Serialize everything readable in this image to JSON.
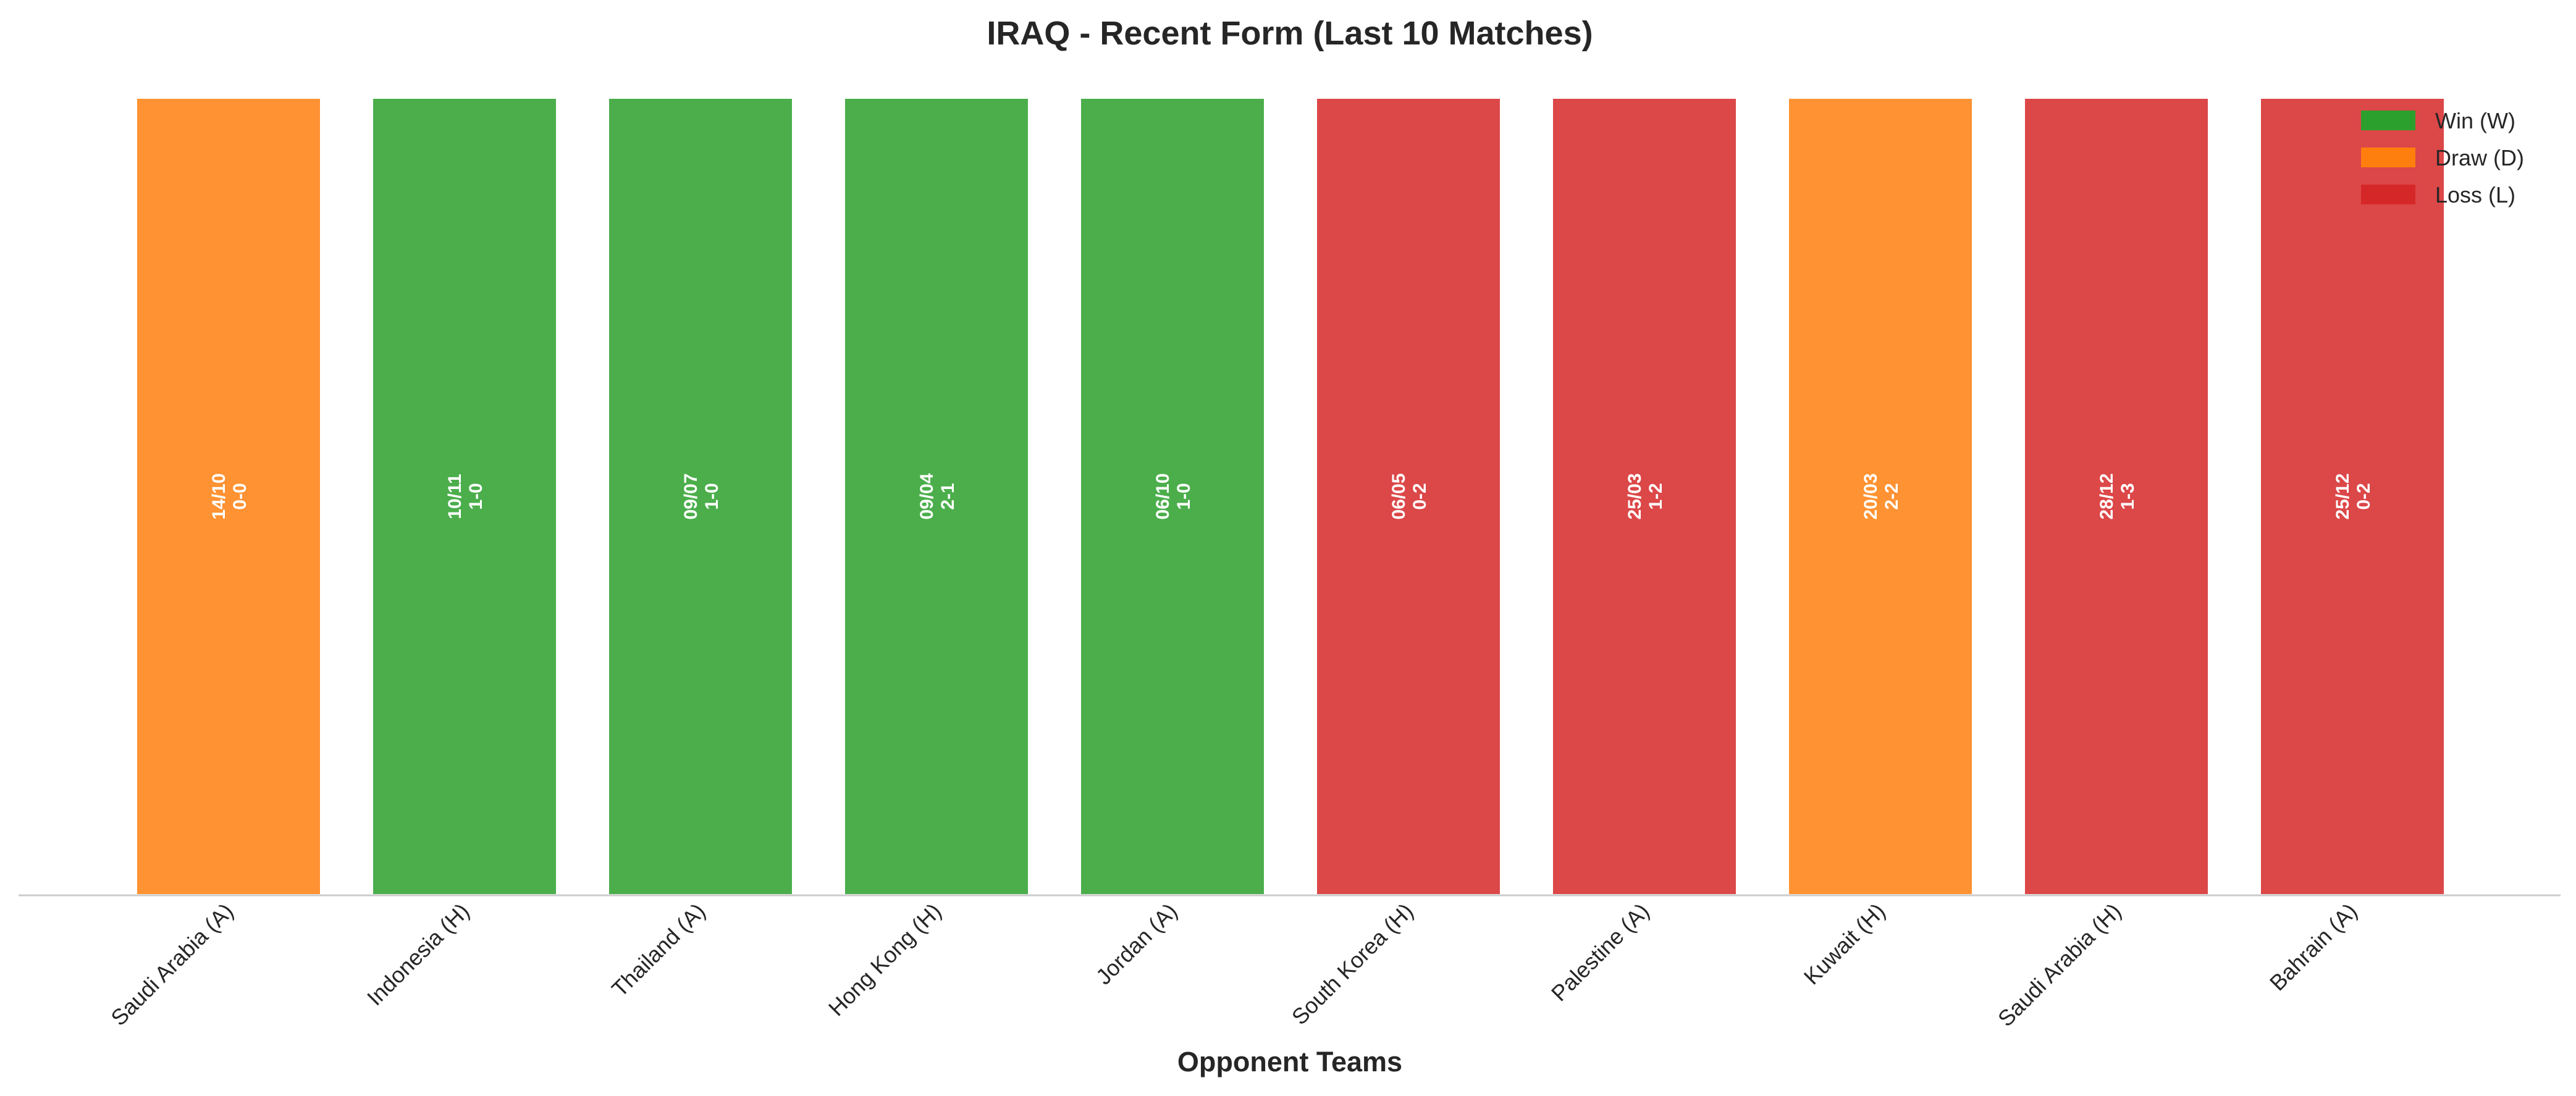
{
  "chart_data": {
    "type": "bar",
    "title": "IRAQ - Recent Form (Last 10 Matches)",
    "xlabel": "Opponent Teams",
    "ylabel": "",
    "categories": [
      "Saudi Arabia (A)",
      "Indonesia (H)",
      "Thailand (A)",
      "Hong Kong (H)",
      "Jordan (A)",
      "South Korea (H)",
      "Palestine (A)",
      "Kuwait (H)",
      "Saudi Arabia (H)",
      "Bahrain (A)"
    ],
    "values": [
      1,
      1,
      1,
      1,
      1,
      1,
      1,
      1,
      1,
      1
    ],
    "results": [
      "D",
      "W",
      "W",
      "W",
      "W",
      "L",
      "L",
      "D",
      "L",
      "L"
    ],
    "dates": [
      "14/10",
      "10/11",
      "09/07",
      "09/04",
      "06/10",
      "06/05",
      "25/03",
      "20/03",
      "28/12",
      "25/12"
    ],
    "scores": [
      "0-0",
      "1-0",
      "1-0",
      "2-1",
      "1-0",
      "0-2",
      "1-2",
      "2-2",
      "1-3",
      "0-2"
    ],
    "ylim": [
      0,
      1
    ],
    "grid": false,
    "legend_position": "top-right",
    "legend": [
      {
        "label": "Win (W)",
        "result": "W"
      },
      {
        "label": "Draw (D)",
        "result": "D"
      },
      {
        "label": "Loss (L)",
        "result": "L"
      }
    ],
    "colors": {
      "W": "#2ca02c",
      "D": "#ff7f0e",
      "L": "#d62728",
      "bar_edge": "#ffffff",
      "axis_line": "#cccccc",
      "text": "#262626"
    }
  }
}
